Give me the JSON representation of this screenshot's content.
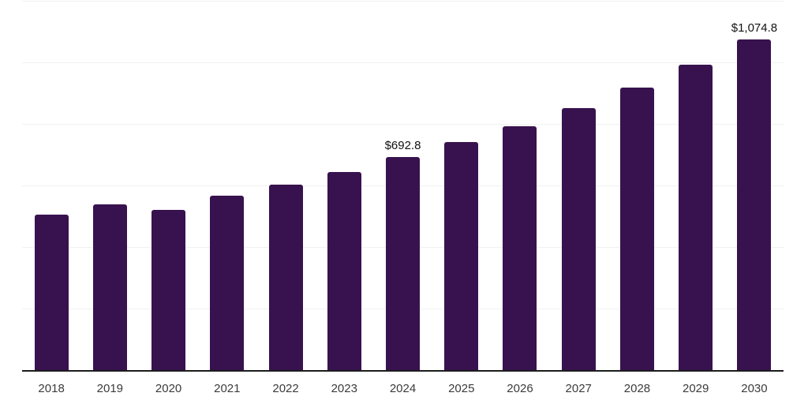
{
  "chart_data": {
    "type": "bar",
    "categories": [
      "2018",
      "2019",
      "2020",
      "2021",
      "2022",
      "2023",
      "2024",
      "2025",
      "2026",
      "2027",
      "2028",
      "2029",
      "2030"
    ],
    "values": [
      505.9,
      538.4,
      520.6,
      565.9,
      601.9,
      644.4,
      692.8,
      741.1,
      792.4,
      850.6,
      918.8,
      993.0,
      1074.8
    ],
    "data_labels": [
      "",
      "",
      "",
      "",
      "",
      "",
      "$692.8",
      "",
      "",
      "",
      "",
      "",
      "$1,074.8"
    ],
    "title": "",
    "xlabel": "",
    "ylabel": "",
    "ylim": [
      0,
      1200
    ],
    "gridlines_y": [
      200,
      400,
      600,
      800,
      1000,
      1200
    ],
    "grid": "horizontal",
    "legend": "none",
    "colors": {
      "bar": "#38124E",
      "grid": "#F1F1F1",
      "axis": "#1C1C1C",
      "tick_label": "#3B3B3B",
      "data_label": "#121212",
      "background": "#FFFFFF"
    }
  }
}
